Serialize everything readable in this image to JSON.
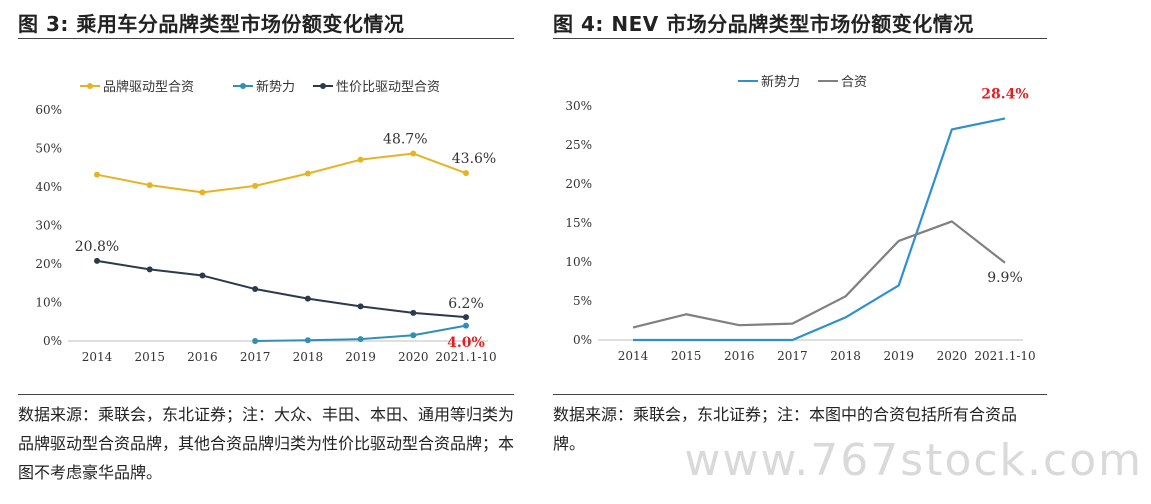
{
  "chart_data": [
    {
      "type": "line",
      "figure_label": "图 3:",
      "title": "乘用车分品牌类型市场份额变化情况",
      "categories": [
        "2014",
        "2015",
        "2016",
        "2017",
        "2018",
        "2019",
        "2020",
        "2021.1-10"
      ],
      "ylim": [
        0,
        60
      ],
      "yticks": [
        "0%",
        "10%",
        "20%",
        "30%",
        "40%",
        "50%",
        "60%"
      ],
      "grid": false,
      "legend_position": "top",
      "series": [
        {
          "name": "品牌驱动型合资",
          "color": "#e6b422",
          "values": [
            43.2,
            40.5,
            38.6,
            40.3,
            43.5,
            47.1,
            48.7,
            43.6
          ]
        },
        {
          "name": "新势力",
          "color": "#2f8fb5",
          "values": [
            null,
            null,
            null,
            0.0,
            0.2,
            0.5,
            1.5,
            4.0
          ]
        },
        {
          "name": "性价比驱动型合资",
          "color": "#2b3a4a",
          "values": [
            20.8,
            18.6,
            17.0,
            13.5,
            11.0,
            9.0,
            7.3,
            6.2
          ]
        }
      ],
      "annotations": [
        {
          "text": "48.7%",
          "series": 0,
          "index": 6,
          "style": "normal"
        },
        {
          "text": "43.6%",
          "series": 0,
          "index": 7,
          "style": "normal"
        },
        {
          "text": "20.8%",
          "series": 2,
          "index": 0,
          "style": "normal"
        },
        {
          "text": "6.2%",
          "series": 2,
          "index": 7,
          "style": "normal"
        },
        {
          "text": "4.0%",
          "series": 1,
          "index": 7,
          "style": "red"
        }
      ],
      "note": "数据来源：乘联会，东北证券；注：大众、丰田、本田、通用等归类为品牌驱动型合资品牌，其他合资品牌归类为性价比驱动型合资品牌；本图不考虑豪华品牌。"
    },
    {
      "type": "line",
      "figure_label": "图 4:",
      "title": "NEV 市场分品牌类型市场份额变化情况",
      "categories": [
        "2014",
        "2015",
        "2016",
        "2017",
        "2018",
        "2019",
        "2020",
        "2021.1-10"
      ],
      "ylim": [
        0,
        30
      ],
      "yticks": [
        "0%",
        "5%",
        "10%",
        "15%",
        "20%",
        "25%",
        "30%"
      ],
      "grid": false,
      "legend_position": "top",
      "series": [
        {
          "name": "新势力",
          "color": "#2f8fd1",
          "values": [
            0.0,
            0.0,
            0.0,
            0.0,
            2.9,
            7.0,
            27.0,
            28.4
          ]
        },
        {
          "name": "合资",
          "color": "#808080",
          "values": [
            1.6,
            3.3,
            1.9,
            2.1,
            5.6,
            12.7,
            15.2,
            9.9
          ]
        }
      ],
      "annotations": [
        {
          "text": "28.4%",
          "series": 0,
          "index": 7,
          "style": "red"
        },
        {
          "text": "9.9%",
          "series": 1,
          "index": 7,
          "style": "normal"
        }
      ],
      "note": "数据来源：乘联会，东北证券；注：本图中的合资包括所有合资品牌。"
    }
  ],
  "watermark": "www.767stock.com"
}
